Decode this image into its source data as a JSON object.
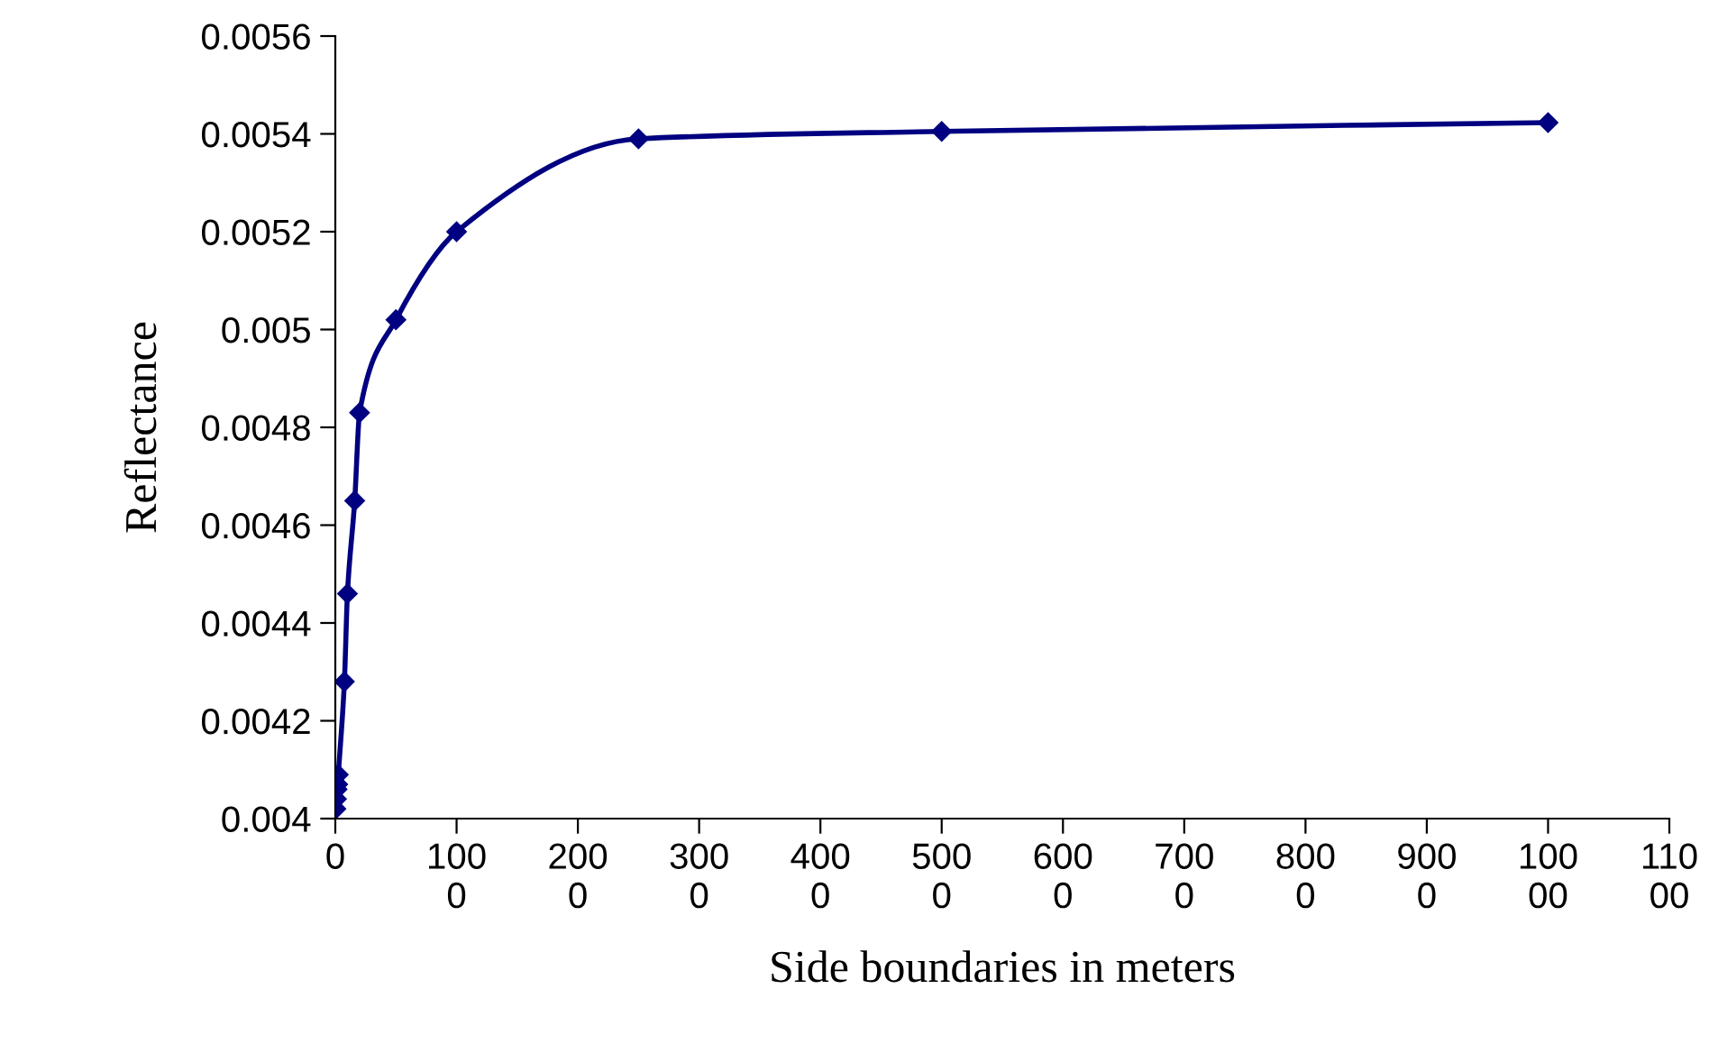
{
  "chart_data": {
    "type": "line",
    "xlabel": "Side boundaries in meters",
    "ylabel": "Reflectance",
    "series": [
      {
        "color": "#000080",
        "x": [
          5,
          10,
          15,
          20,
          25,
          75,
          100,
          160,
          200,
          500,
          1000,
          2500,
          5000,
          10000
        ],
        "values": [
          0.00402,
          0.00404,
          0.00406,
          0.00407,
          0.00409,
          0.00428,
          0.00446,
          0.00465,
          0.00483,
          0.00502,
          0.0052,
          0.00539,
          0.005405,
          0.005423
        ]
      }
    ],
    "marker": "diamond",
    "line_style": "solid",
    "grid": false,
    "legend": false,
    "xlim": [
      0,
      11000
    ],
    "xticks": [
      0,
      1000,
      2000,
      3000,
      4000,
      5000,
      6000,
      7000,
      8000,
      9000,
      10000,
      11000
    ],
    "ylim": [
      0.004,
      0.0056
    ],
    "yticks": [
      0.004,
      0.0042,
      0.0044,
      0.0046,
      0.0048,
      0.005,
      0.0052,
      0.0054,
      0.0056
    ]
  }
}
